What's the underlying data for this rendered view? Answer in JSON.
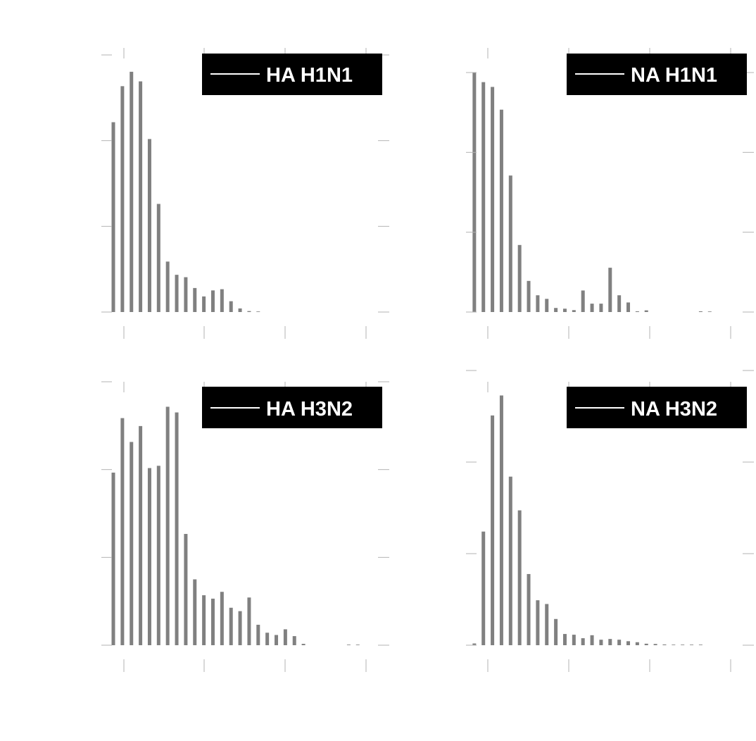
{
  "colors": {
    "bar": "#808080",
    "tick": "#b3b3b3",
    "legend_bg": "#000000",
    "legend_text": "#ffffff"
  },
  "chart_data": [
    {
      "type": "bar",
      "legend": "HA H1N1",
      "x": [
        0,
        1,
        2,
        3,
        4,
        5,
        6,
        7,
        8,
        9,
        10,
        11,
        12,
        13,
        14,
        15,
        16,
        17,
        18,
        19,
        20,
        21,
        22,
        23,
        24,
        25,
        26,
        27,
        28,
        29
      ],
      "values": [
        0.79,
        0.94,
        1.0,
        0.96,
        0.72,
        0.45,
        0.21,
        0.155,
        0.145,
        0.1,
        0.065,
        0.09,
        0.095,
        0.045,
        0.015,
        0.004,
        0.002,
        0,
        0,
        0,
        0,
        0,
        0,
        0,
        0,
        0,
        0,
        0,
        0,
        0
      ],
      "ylim": [
        0,
        1.07
      ],
      "xlim": [
        -0.7,
        29.7
      ],
      "x_ticks": 4,
      "y_ticks": 4,
      "grid": false,
      "legend_position": "top-right"
    },
    {
      "type": "bar",
      "legend": "NA H1N1",
      "x": [
        0,
        1,
        2,
        3,
        4,
        5,
        6,
        7,
        8,
        9,
        10,
        11,
        12,
        13,
        14,
        15,
        16,
        17,
        18,
        19,
        20,
        21,
        22,
        23,
        24,
        25,
        26,
        27,
        28,
        29
      ],
      "values": [
        1.0,
        0.96,
        0.94,
        0.845,
        0.57,
        0.28,
        0.13,
        0.07,
        0.055,
        0.017,
        0.014,
        0.008,
        0.09,
        0.035,
        0.035,
        0.185,
        0.07,
        0.04,
        0.003,
        0.007,
        0,
        0,
        0,
        0,
        0,
        0.003,
        0.001,
        0,
        0,
        0
      ],
      "ylim": [
        0,
        1.0
      ],
      "xlim": [
        -0.3,
        30.1
      ],
      "x_ticks": 4,
      "y_ticks": 4,
      "grid": false,
      "legend_position": "top-right"
    },
    {
      "type": "bar",
      "legend": "HA H3N2",
      "x": [
        0,
        1,
        2,
        3,
        4,
        5,
        6,
        7,
        8,
        9,
        10,
        11,
        12,
        13,
        14,
        15,
        16,
        17,
        18,
        19,
        20,
        21,
        22,
        23,
        24,
        25,
        26,
        27,
        28,
        29
      ],
      "values": [
        0.76,
        1.0,
        0.895,
        0.965,
        0.78,
        0.79,
        1.05,
        1.025,
        0.49,
        0.29,
        0.22,
        0.205,
        0.235,
        0.165,
        0.15,
        0.21,
        0.09,
        0.055,
        0.045,
        0.07,
        0.04,
        0.006,
        0,
        0,
        0,
        0,
        0.002,
        0.001,
        0,
        0
      ],
      "ylim": [
        0,
        1.16
      ],
      "xlim": [
        -0.7,
        29.7
      ],
      "x_ticks": 4,
      "y_ticks": 4,
      "grid": false,
      "legend_position": "top-right"
    },
    {
      "type": "bar",
      "legend": "NA H3N2",
      "x": [
        0,
        1,
        2,
        3,
        4,
        5,
        6,
        7,
        8,
        9,
        10,
        11,
        12,
        13,
        14,
        15,
        16,
        17,
        18,
        19,
        20,
        21,
        22,
        23,
        24,
        25,
        26,
        27,
        28,
        29
      ],
      "values": [
        0.007,
        0.455,
        0.92,
        1.0,
        0.675,
        0.54,
        0.285,
        0.18,
        0.165,
        0.105,
        0.045,
        0.042,
        0.028,
        0.04,
        0.022,
        0.025,
        0.022,
        0.016,
        0.012,
        0.006,
        0.005,
        0.003,
        0.002,
        0.001,
        0.001,
        0.001,
        0,
        0,
        0,
        0
      ],
      "ylim": [
        0,
        1.1
      ],
      "xlim": [
        -0.3,
        30.1
      ],
      "x_ticks": 4,
      "y_ticks": 4,
      "grid": false,
      "legend_position": "top-right"
    }
  ]
}
